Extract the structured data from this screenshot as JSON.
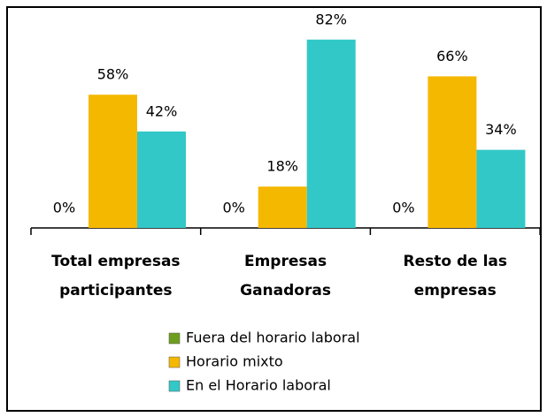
{
  "chart_data": {
    "type": "bar",
    "categories": [
      "Total empresas\nparticipantes",
      "Empresas\nGanadoras",
      "Resto de las\nempresas"
    ],
    "series": [
      {
        "name": "Fuera del horario laboral",
        "color": "#6e9e1e",
        "values": [
          0,
          0,
          0
        ],
        "value_labels": [
          "0%",
          "0%",
          "0%"
        ]
      },
      {
        "name": "Horario mixto",
        "color": "#f5b800",
        "values": [
          58,
          18,
          66
        ],
        "value_labels": [
          "58%",
          "18%",
          "66%"
        ]
      },
      {
        "name": "En el Horario laboral",
        "color": "#33c8c8",
        "values": [
          42,
          82,
          34
        ],
        "value_labels": [
          "42%",
          "82%",
          "34%"
        ]
      }
    ]
  }
}
